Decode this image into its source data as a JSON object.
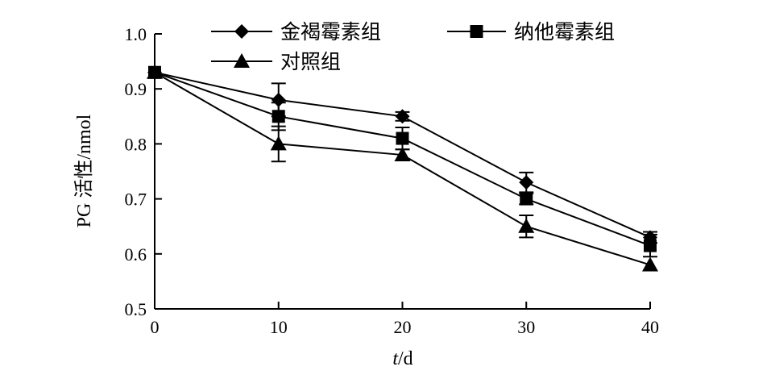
{
  "chart_data": {
    "type": "line",
    "xlabel_italic": "t",
    "xlabel_rest": "/d",
    "ylabel": "PG 活性/nmol",
    "x": [
      0,
      10,
      20,
      30,
      40
    ],
    "xlim": [
      0,
      40
    ],
    "ylim": [
      0.5,
      1.0
    ],
    "x_ticks": [
      0,
      10,
      20,
      30,
      40
    ],
    "y_ticks": [
      0.5,
      0.6,
      0.7,
      0.8,
      0.9,
      1.0
    ],
    "y_tick_labels": [
      "0.5",
      "0.6",
      "0.7",
      "0.8",
      "0.9",
      "1.0"
    ],
    "grid": false,
    "legend_position": "top",
    "series": [
      {
        "name": "金褐霉素组",
        "marker": "diamond",
        "values": [
          0.93,
          0.88,
          0.85,
          0.73,
          0.63
        ],
        "errors": [
          0.005,
          0.03,
          0.008,
          0.018,
          0.01
        ]
      },
      {
        "name": "纳他霉素组",
        "marker": "square",
        "values": [
          0.93,
          0.85,
          0.81,
          0.7,
          0.615
        ],
        "errors": [
          0.005,
          0.025,
          0.02,
          0.01,
          0.02
        ]
      },
      {
        "name": "对照组",
        "marker": "triangle",
        "values": [
          0.93,
          0.8,
          0.78,
          0.65,
          0.58
        ],
        "errors": [
          0.005,
          0.032,
          0.01,
          0.02,
          0.005
        ]
      }
    ]
  }
}
